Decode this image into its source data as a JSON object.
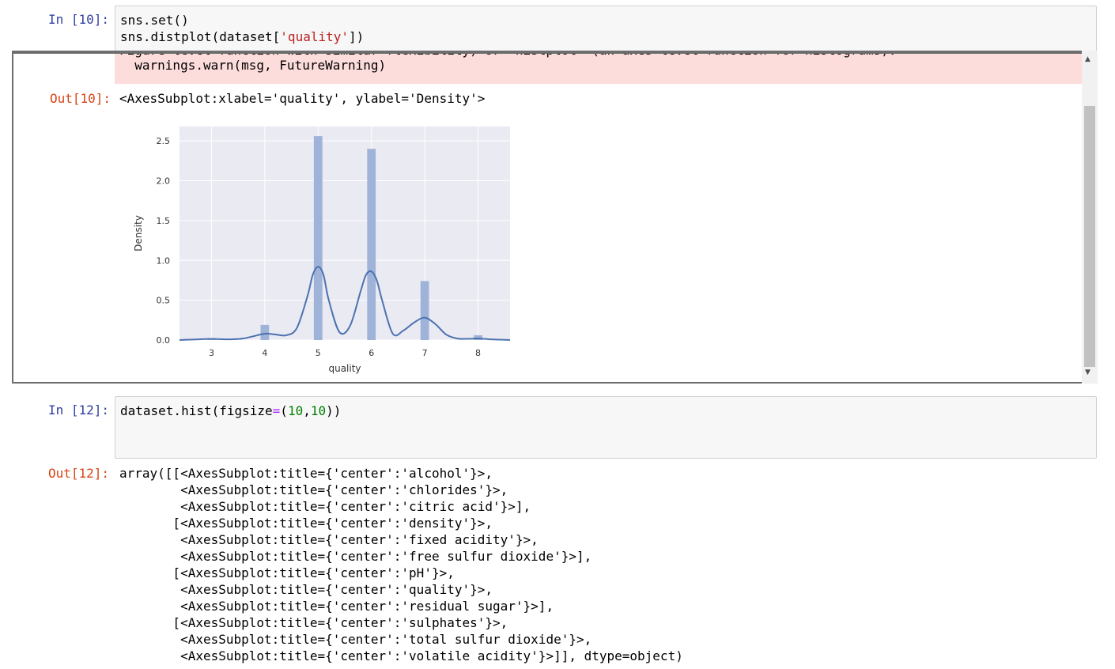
{
  "cells": {
    "cell10": {
      "in_prompt": "In [10]:",
      "code_line1": "sns.set()",
      "code_line2_pre": "sns.distplot(dataset[",
      "code_line2_str": "'quality'",
      "code_line2_post": "])",
      "stderr_line1": "Figure-level function with similar flexibility) or `histplot` (an axes-level function for histograms).",
      "stderr_line2": "  warnings.warn(msg, FutureWarning)",
      "out_prompt": "Out[10]:",
      "out_text": "<AxesSubplot:xlabel='quality', ylabel='Density'>"
    },
    "cell12": {
      "in_prompt": "In [12]:",
      "code_pre": "dataset.hist(figsize",
      "code_op": "=",
      "code_paren": "(",
      "code_num1": "10",
      "code_comma": ",",
      "code_num2": "10",
      "code_post": "))",
      "out_prompt": "Out[12]:",
      "out_lines": [
        "array([[<AxesSubplot:title={'center':'alcohol'}>,",
        "        <AxesSubplot:title={'center':'chlorides'}>,",
        "        <AxesSubplot:title={'center':'citric acid'}>],",
        "       [<AxesSubplot:title={'center':'density'}>,",
        "        <AxesSubplot:title={'center':'fixed acidity'}>,",
        "        <AxesSubplot:title={'center':'free sulfur dioxide'}>],",
        "       [<AxesSubplot:title={'center':'pH'}>,",
        "        <AxesSubplot:title={'center':'quality'}>,",
        "        <AxesSubplot:title={'center':'residual sugar'}>],",
        "       [<AxesSubplot:title={'center':'sulphates'}>,",
        "        <AxesSubplot:title={'center':'total sulfur dioxide'}>,",
        "        <AxesSubplot:title={'center':'volatile acidity'}>]], dtype=object)"
      ]
    }
  },
  "chart_data": {
    "type": "bar",
    "xlabel": "quality",
    "ylabel": "Density",
    "x_ticks": [
      3,
      4,
      5,
      6,
      7,
      8
    ],
    "y_ticks": [
      "0.0",
      "0.5",
      "1.0",
      "1.5",
      "2.0",
      "2.5"
    ],
    "xlim": [
      2.4,
      8.6
    ],
    "ylim": [
      0,
      2.68
    ],
    "bar_color": "#9fb3d9",
    "kde_color": "#4c72b0",
    "background": "#eaeaf2",
    "bars": [
      {
        "x": 3,
        "value": 0.02
      },
      {
        "x": 4,
        "value": 0.19
      },
      {
        "x": 5,
        "value": 2.56
      },
      {
        "x": 6,
        "value": 2.4
      },
      {
        "x": 7,
        "value": 0.74
      },
      {
        "x": 8,
        "value": 0.06
      }
    ],
    "kde": {
      "x": [
        2.4,
        2.6,
        2.8,
        3.0,
        3.2,
        3.4,
        3.6,
        3.8,
        4.0,
        4.2,
        4.4,
        4.6,
        4.8,
        4.9,
        5.0,
        5.1,
        5.2,
        5.4,
        5.6,
        5.8,
        5.9,
        6.0,
        6.1,
        6.2,
        6.4,
        6.6,
        6.8,
        7.0,
        7.2,
        7.4,
        7.6,
        7.8,
        8.0,
        8.2,
        8.4,
        8.6
      ],
      "y": [
        0.0,
        0.005,
        0.01,
        0.015,
        0.01,
        0.01,
        0.02,
        0.05,
        0.08,
        0.07,
        0.06,
        0.15,
        0.55,
        0.82,
        0.92,
        0.82,
        0.5,
        0.1,
        0.18,
        0.62,
        0.82,
        0.86,
        0.75,
        0.5,
        0.08,
        0.12,
        0.22,
        0.28,
        0.2,
        0.07,
        0.02,
        0.015,
        0.02,
        0.01,
        0.005,
        0.0
      ]
    }
  }
}
